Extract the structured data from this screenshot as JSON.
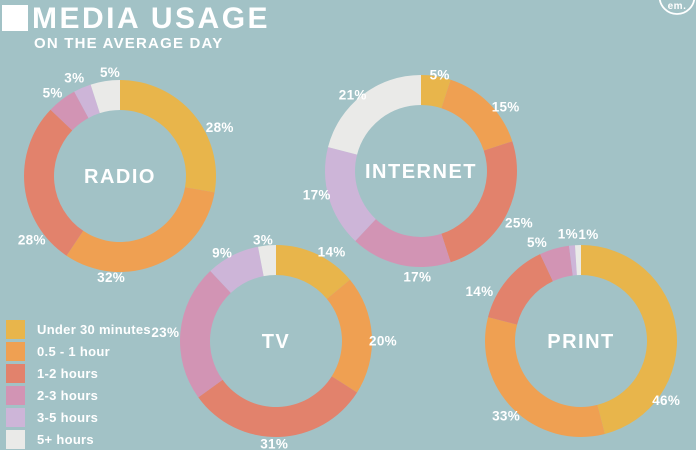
{
  "title": "MEDIA USAGE",
  "subtitle": "ON THE AVERAGE DAY",
  "logo_text": "em.",
  "colors": {
    "background": "#a2c2c6",
    "text": "#ffffff"
  },
  "legend": {
    "items": [
      "Under 30 minutes",
      "0.5 - 1 hour",
      "1-2 hours",
      "2-3 hours",
      "3-5 hours",
      "5+ hours"
    ]
  },
  "chart_data": {
    "type": "pie",
    "subtype": "donut",
    "title": "MEDIA USAGE ON THE AVERAGE DAY",
    "unit": "%",
    "legend_position": "bottom-left",
    "categories": [
      "Under 30 minutes",
      "0.5 - 1 hour",
      "1-2 hours",
      "2-3 hours",
      "3-5 hours",
      "5+ hours"
    ],
    "colors": [
      "#e8b54b",
      "#efa052",
      "#e2826c",
      "#d294b4",
      "#cdb5d8",
      "#eaeae8"
    ],
    "series": [
      {
        "name": "RADIO",
        "values": [
          28,
          32,
          28,
          5,
          3,
          5
        ]
      },
      {
        "name": "INTERNET",
        "values": [
          5,
          15,
          25,
          17,
          17,
          21
        ]
      },
      {
        "name": "TV",
        "values": [
          14,
          20,
          31,
          23,
          9,
          3
        ]
      },
      {
        "name": "PRINT",
        "values": [
          46,
          33,
          14,
          5,
          1,
          1
        ]
      }
    ]
  }
}
